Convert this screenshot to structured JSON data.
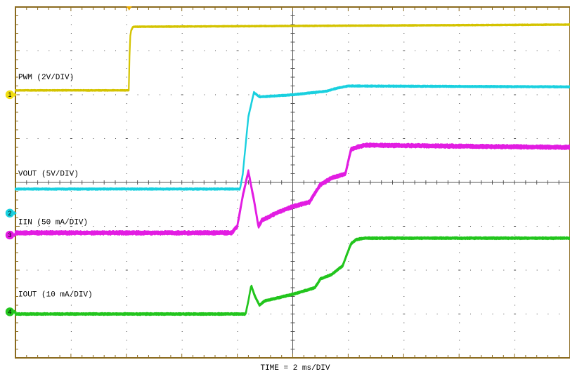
{
  "chart_data": {
    "type": "line",
    "title": "",
    "xlabel": "TIME = 2 ms/DIV",
    "ylabel": "",
    "grid": true,
    "x_divisions": 10,
    "y_divisions": 8,
    "x_unit": "div",
    "y_unit": "div",
    "xlim": [
      0,
      10
    ],
    "ylim": [
      -4,
      4
    ],
    "trigger_time_div": 2.05,
    "colors": {
      "frame": "#8a6a1e",
      "grid": "#4a4a4a",
      "background": "#ffffff"
    },
    "series": [
      {
        "name": "PWM (2V/DIV)",
        "channel": "1",
        "color": "#d4c300",
        "noise": 0.02,
        "x": [
          0,
          2.05,
          2.06,
          2.08,
          2.12,
          10
        ],
        "y": [
          2.1,
          2.1,
          3.2,
          3.45,
          3.55,
          3.6
        ]
      },
      {
        "name": "VOUT (5V/DIV)",
        "channel": "2",
        "color": "#19d0df",
        "noise": 0.03,
        "x": [
          0,
          4.05,
          4.1,
          4.2,
          4.3,
          4.4,
          5,
          5.6,
          5.8,
          6,
          10
        ],
        "y": [
          -0.15,
          -0.15,
          0.2,
          1.5,
          2.05,
          1.95,
          2.0,
          2.08,
          2.15,
          2.2,
          2.18
        ]
      },
      {
        "name": "IIN (50 mA/DIV)",
        "channel": "3",
        "color": "#e21de2",
        "noise": 0.07,
        "x": [
          0,
          3.9,
          4.0,
          4.1,
          4.2,
          4.3,
          4.38,
          4.45,
          4.55,
          4.7,
          5.0,
          5.3,
          5.4,
          5.5,
          5.7,
          5.95,
          6.05,
          6.15,
          6.3,
          10
        ],
        "y": [
          -1.15,
          -1.15,
          -1.0,
          -0.3,
          0.25,
          -0.4,
          -1.0,
          -0.85,
          -0.8,
          -0.7,
          -0.55,
          -0.45,
          -0.25,
          -0.05,
          0.1,
          0.2,
          0.75,
          0.8,
          0.85,
          0.8
        ]
      },
      {
        "name": "IOUT (10 mA/DIV)",
        "channel": "4",
        "color": "#22c51d",
        "noise": 0.04,
        "x": [
          0,
          4.15,
          4.2,
          4.25,
          4.32,
          4.4,
          4.5,
          5.0,
          5.4,
          5.5,
          5.7,
          5.9,
          6.05,
          6.15,
          6.3,
          10
        ],
        "y": [
          -3.0,
          -3.0,
          -2.7,
          -2.35,
          -2.6,
          -2.8,
          -2.7,
          -2.55,
          -2.4,
          -2.2,
          -2.1,
          -1.9,
          -1.4,
          -1.3,
          -1.27,
          -1.27
        ]
      }
    ],
    "labels": [
      {
        "text": "PWM (2V/DIV)",
        "series": 0
      },
      {
        "text": "VOUT (5V/DIV)",
        "series": 1
      },
      {
        "text": "IIN (50 mA/DIV)",
        "series": 2
      },
      {
        "text": "IOUT (10 mA/DIV)",
        "series": 3
      }
    ],
    "ground_markers": [
      {
        "channel": "1",
        "level": 2.0,
        "color": "#f1de10"
      },
      {
        "channel": "2",
        "level": -0.7,
        "color": "#19d0df"
      },
      {
        "channel": "3",
        "level": -1.2,
        "color": "#e21de2"
      },
      {
        "channel": "4",
        "level": -2.95,
        "color": "#22c51d"
      }
    ],
    "label_levels": [
      2.35,
      0.15,
      -0.95,
      -2.6
    ]
  }
}
